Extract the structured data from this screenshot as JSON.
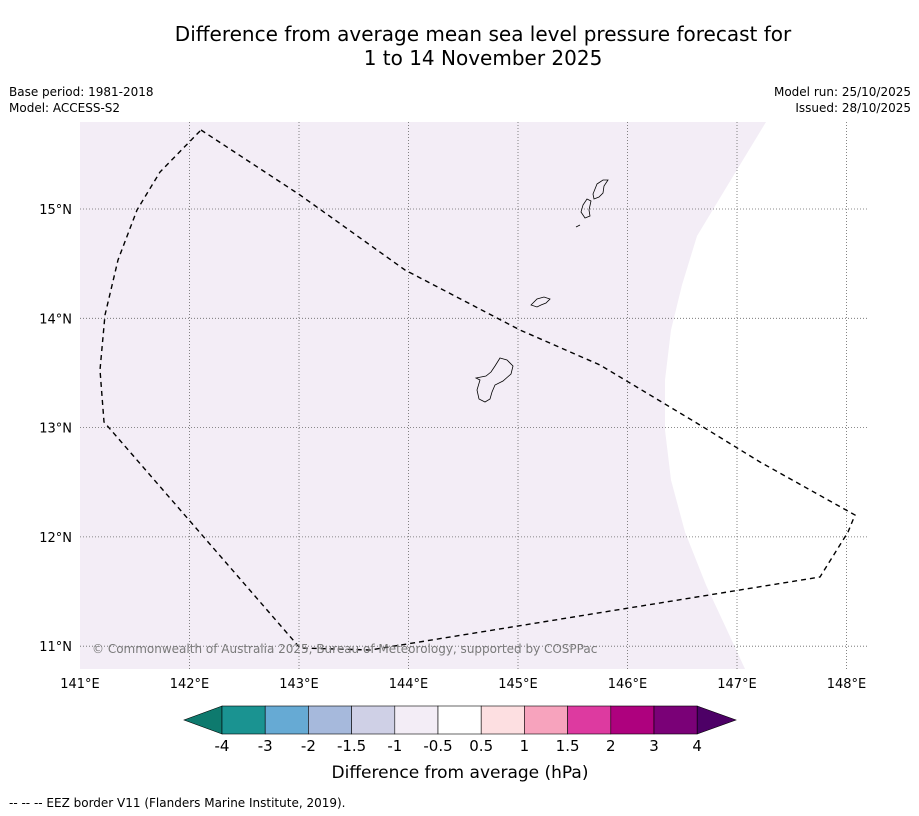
{
  "title": {
    "line1": "Difference from average mean sea level pressure forecast for",
    "line2": "1 to 14 November 2025"
  },
  "meta": {
    "base_period": "Base period: 1981-2018",
    "model": "Model: ACCESS-S2",
    "model_run": "Model run: 25/10/2025",
    "issued": "Issued: 28/10/2025"
  },
  "map": {
    "lon_ticks": [
      {
        "value": 141,
        "label": "141°E"
      },
      {
        "value": 142,
        "label": "142°E"
      },
      {
        "value": 143,
        "label": "143°E"
      },
      {
        "value": 144,
        "label": "144°E"
      },
      {
        "value": 145,
        "label": "145°E"
      },
      {
        "value": 146,
        "label": "146°E"
      },
      {
        "value": 147,
        "label": "147°E"
      },
      {
        "value": 148,
        "label": "148°E"
      }
    ],
    "lat_ticks": [
      {
        "value": 15,
        "label": "15°N"
      },
      {
        "value": 14,
        "label": "14°N"
      },
      {
        "value": 13,
        "label": "13°N"
      },
      {
        "value": 12,
        "label": "12°N"
      },
      {
        "value": 11,
        "label": "11°N"
      }
    ],
    "extent": {
      "lon_min": 141,
      "lon_max": 148.2,
      "lat_min": 10.8,
      "lat_max": 15.8
    },
    "shaded_class": "-1 to -0.5",
    "shaded_color": "#f3edf6",
    "copyright": "© Commonwealth of Australia 2025, Bureau of Meteorology, supported by COSPPac"
  },
  "colorbar": {
    "colors": [
      "#0e7a6e",
      "#1a9391",
      "#66aad4",
      "#a6b9dc",
      "#cfd0e6",
      "#f3edf6",
      "#ffffff",
      "#fddfe1",
      "#f7a3bd",
      "#dd3aa0",
      "#ae017e",
      "#7a0177",
      "#4d0066"
    ],
    "ticks": [
      "-4",
      "-3",
      "-2",
      "-1.5",
      "-1",
      "-0.5",
      "0.5",
      "1",
      "1.5",
      "2",
      "3",
      "4"
    ],
    "label": "Difference from average (hPa)"
  },
  "footer": "--  --  -- EEZ border V11 (Flanders Marine Institute, 2019)."
}
